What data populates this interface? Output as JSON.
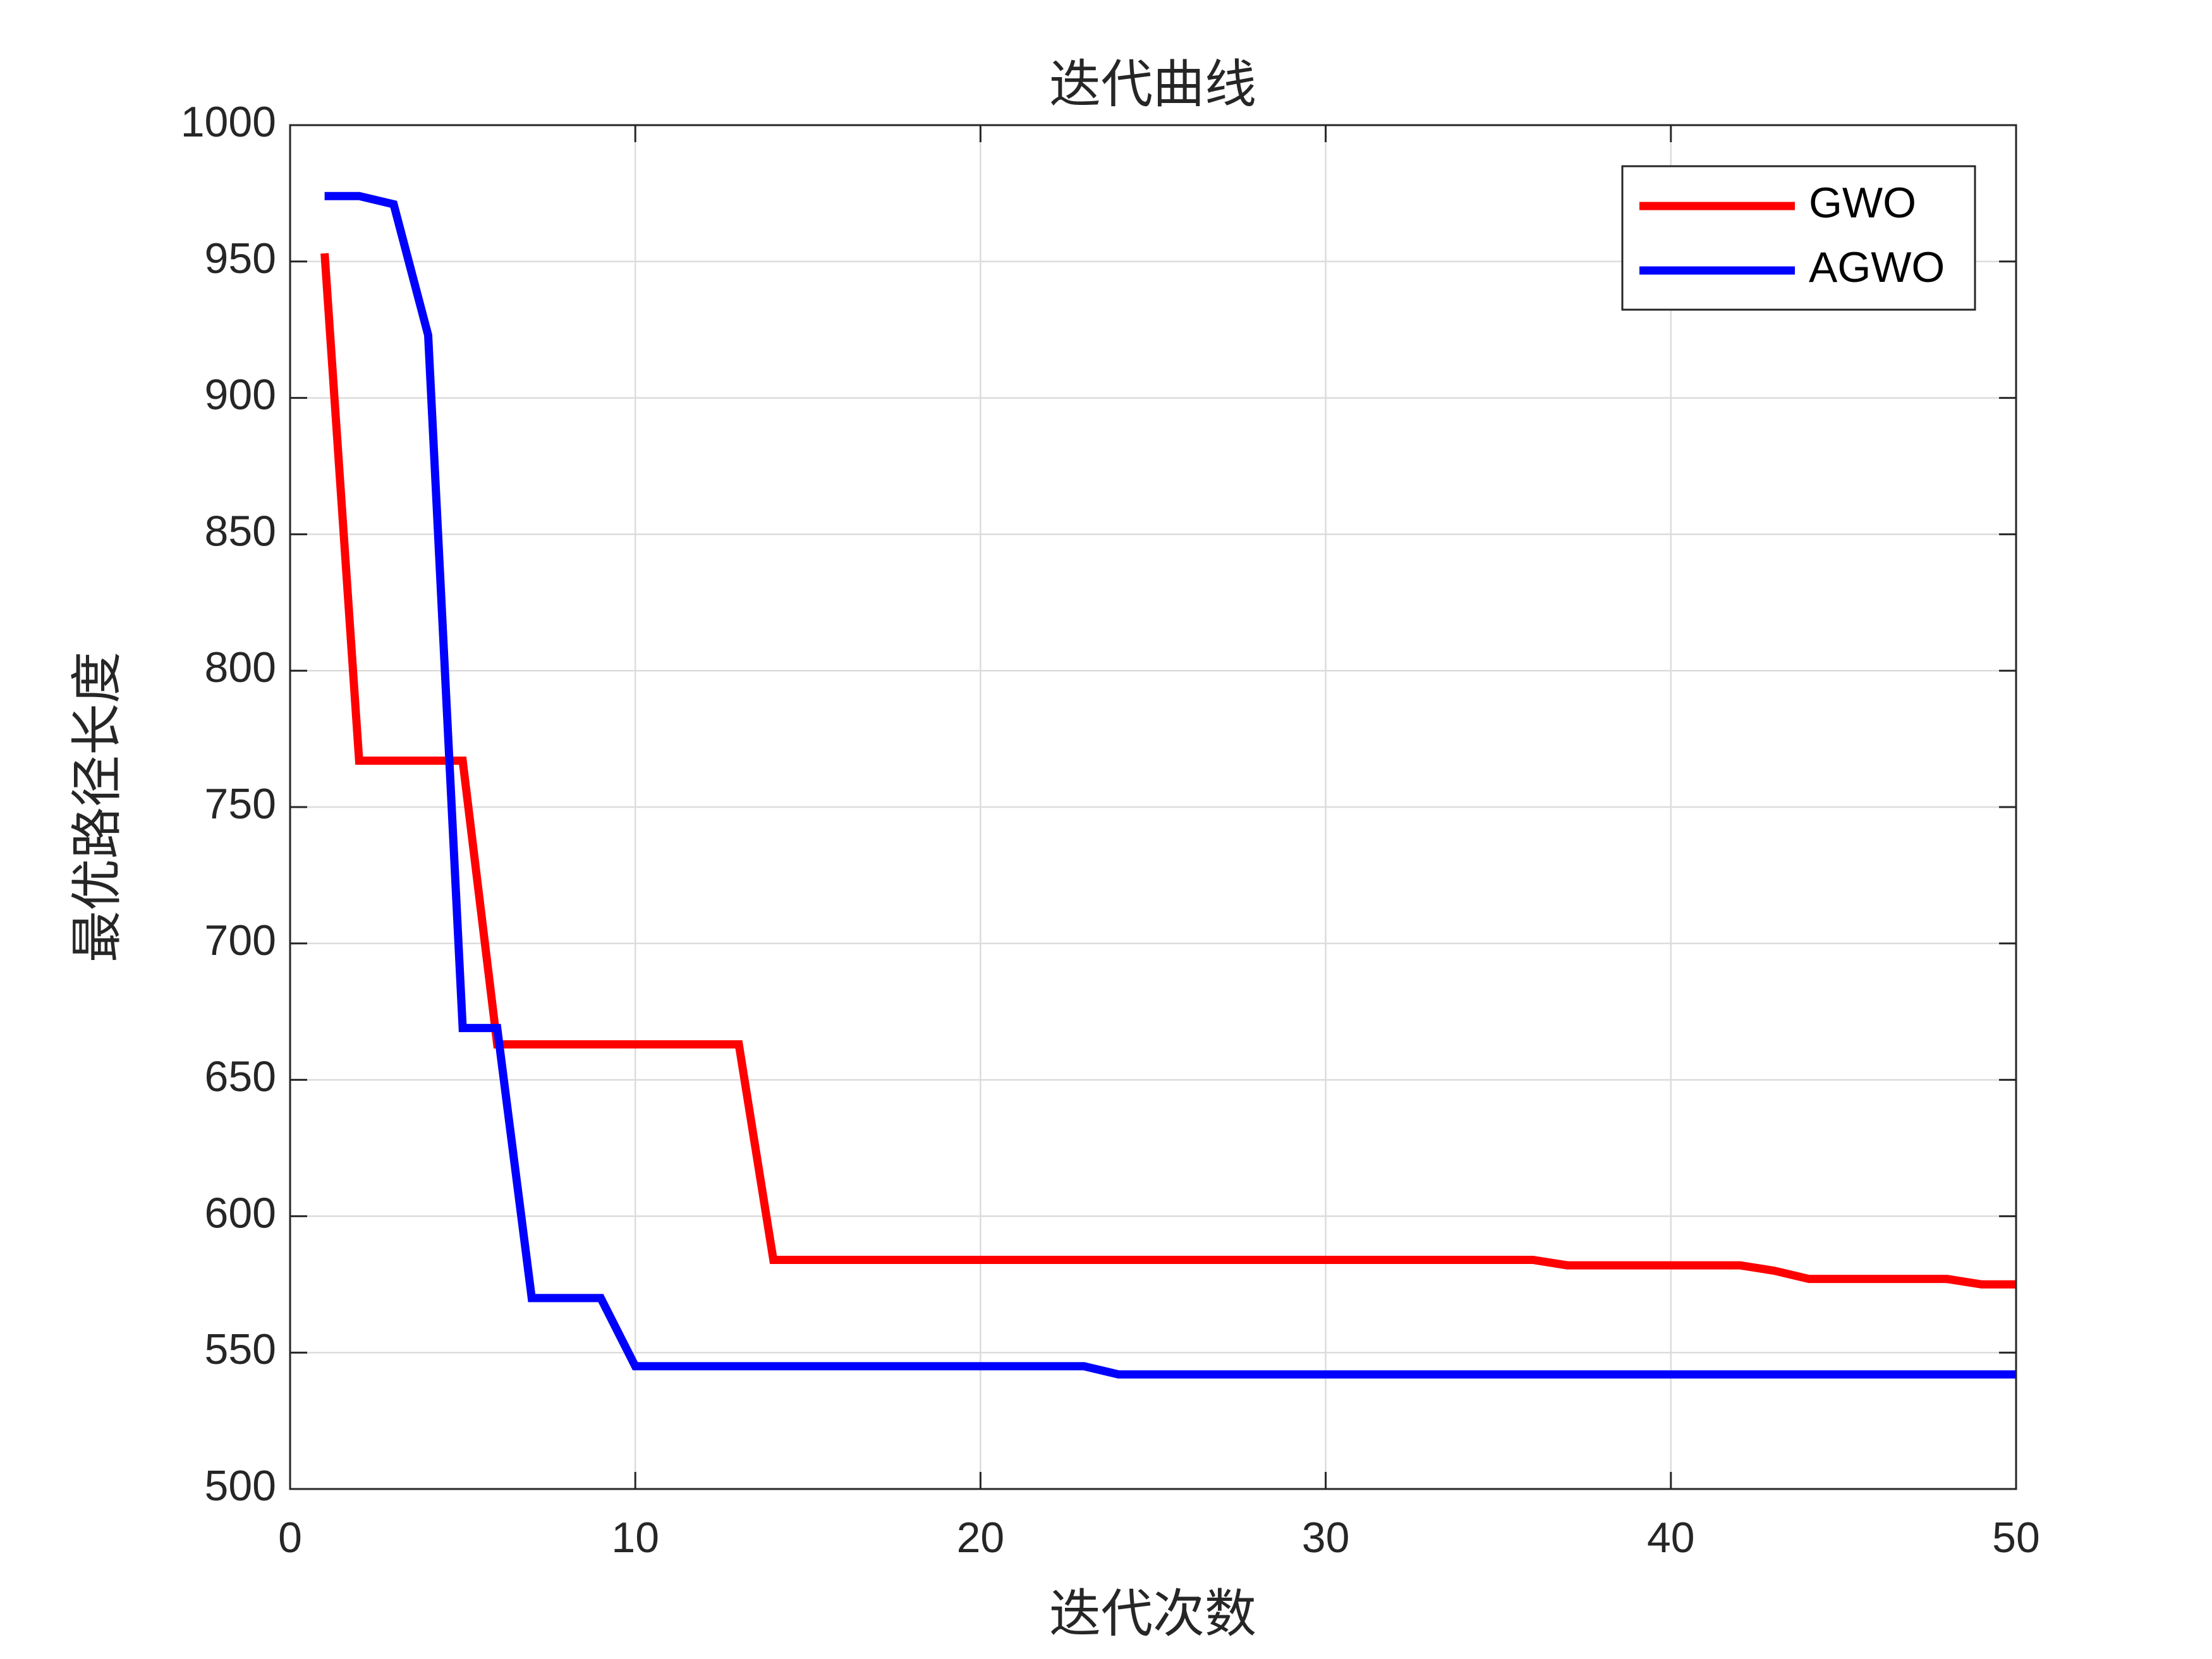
{
  "chart_data": {
    "type": "line",
    "title": "迭代曲线",
    "x_label": "迭代次数",
    "y_label": "最优路径长度",
    "x": [
      1,
      2,
      3,
      4,
      5,
      6,
      7,
      8,
      9,
      10,
      11,
      12,
      13,
      14,
      15,
      16,
      17,
      18,
      19,
      20,
      21,
      22,
      23,
      24,
      25,
      26,
      27,
      28,
      29,
      30,
      31,
      32,
      33,
      34,
      35,
      36,
      37,
      38,
      39,
      40,
      41,
      42,
      43,
      44,
      45,
      46,
      47,
      48,
      49,
      50
    ],
    "series": [
      {
        "name": "GWO",
        "color": "#ff0000",
        "values": [
          953,
          767,
          767,
          767,
          767,
          663,
          663,
          663,
          663,
          663,
          663,
          663,
          663,
          584,
          584,
          584,
          584,
          584,
          584,
          584,
          584,
          584,
          584,
          584,
          584,
          584,
          584,
          584,
          584,
          584,
          584,
          584,
          584,
          584,
          584,
          584,
          582,
          582,
          582,
          582,
          582,
          582,
          580,
          577,
          577,
          577,
          577,
          577,
          575,
          575
        ]
      },
      {
        "name": "AGWO",
        "color": "#0000ff",
        "values": [
          974,
          974,
          971,
          923,
          669,
          669,
          570,
          570,
          570,
          545,
          545,
          545,
          545,
          545,
          545,
          545,
          545,
          545,
          545,
          545,
          545,
          545,
          545,
          542,
          542,
          542,
          542,
          542,
          542,
          542,
          542,
          542,
          542,
          542,
          542,
          542,
          542,
          542,
          542,
          542,
          542,
          542,
          542,
          542,
          542,
          542,
          542,
          542,
          542,
          542
        ]
      }
    ],
    "xlim": [
      0,
      50
    ],
    "xticks": [
      0,
      10,
      20,
      30,
      40,
      50
    ],
    "ylim": [
      500,
      1000
    ],
    "yticks": [
      500,
      550,
      600,
      650,
      700,
      750,
      800,
      850,
      900,
      950,
      1000
    ],
    "grid": true,
    "legend": "northeast"
  }
}
